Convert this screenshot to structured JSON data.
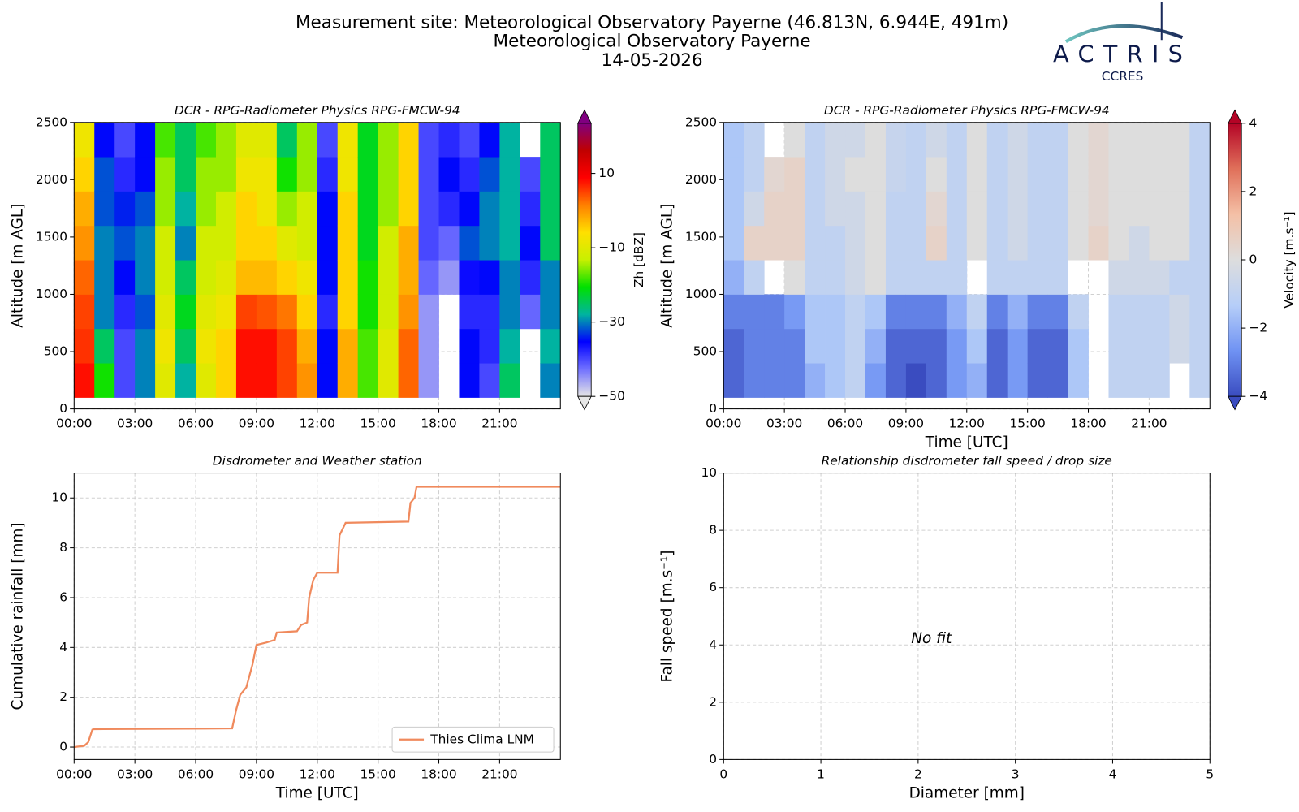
{
  "header": {
    "lines": [
      "Measurement site: Meteorological Observatory Payerne (46.813N, 6.944E, 491m)",
      "Meteorological Observatory Payerne",
      "14-05-2026"
    ],
    "logo": "ACTRIS",
    "logo_sub": "CCRES"
  },
  "chart_data": [
    {
      "type": "heatmap",
      "title": "DCR - RPG-Radiometer Physics RPG-FMCW-94",
      "ylabel": "Altitude [m AGL]",
      "x_edges": [
        0,
        1,
        2,
        3,
        4,
        5,
        6,
        7,
        8,
        9,
        10,
        11,
        12,
        13,
        14,
        15,
        16,
        17,
        18,
        19,
        20,
        21,
        22,
        23,
        24
      ],
      "y_edges": [
        100,
        400,
        700,
        1000,
        1300,
        1600,
        1900,
        2200,
        2500
      ],
      "values": [
        [
          8,
          6,
          5,
          3,
          0,
          -2,
          -5,
          -8
        ],
        [
          -20,
          -25,
          -30,
          -30,
          -30,
          -32,
          -32,
          -35
        ],
        [
          -40,
          -40,
          -38,
          -35,
          -32,
          -34,
          -38,
          -40
        ],
        [
          -30,
          -30,
          -32,
          -30,
          -30,
          -32,
          -35,
          -35
        ],
        [
          -10,
          -8,
          -10,
          -12,
          -12,
          -15,
          -15,
          -18
        ],
        [
          -28,
          -25,
          -22,
          -25,
          -30,
          -28,
          -25,
          -25
        ],
        [
          -10,
          -8,
          -10,
          -12,
          -12,
          -15,
          -15,
          -18
        ],
        [
          -5,
          -5,
          -8,
          -10,
          -12,
          -12,
          -15,
          -15
        ],
        [
          8,
          8,
          5,
          -3,
          -5,
          -5,
          -8,
          -10
        ],
        [
          8,
          8,
          4,
          -3,
          -5,
          -8,
          -8,
          -10
        ],
        [
          5,
          5,
          2,
          -5,
          -10,
          -15,
          -20,
          -25
        ],
        [
          0,
          -2,
          -5,
          -8,
          -12,
          -12,
          -15,
          -15
        ],
        [
          -35,
          -35,
          -38,
          -35,
          -35,
          -35,
          -38,
          -40
        ],
        [
          -2,
          -2,
          -5,
          -5,
          -5,
          -5,
          -8,
          -8
        ],
        [
          -18,
          -18,
          -20,
          -20,
          -22,
          -22,
          -22,
          -22
        ],
        [
          -10,
          -10,
          -12,
          -12,
          -12,
          -15,
          -15,
          -15
        ],
        [
          3,
          3,
          0,
          -2,
          -2,
          -5,
          -5,
          -5
        ],
        [
          -45,
          -45,
          -45,
          -42,
          -40,
          -40,
          -40,
          -40
        ],
        [
          null,
          null,
          null,
          -45,
          -42,
          -38,
          -35,
          -38
        ],
        [
          -35,
          -35,
          -38,
          -36,
          -32,
          -35,
          -38,
          -40
        ],
        [
          -40,
          -38,
          -38,
          -35,
          -30,
          -30,
          -32,
          -35
        ],
        [
          -25,
          -28,
          -30,
          -30,
          -28,
          -28,
          -28,
          -28
        ],
        [
          null,
          null,
          -42,
          -38,
          -35,
          -38,
          -40,
          null
        ],
        [
          -30,
          -28,
          -30,
          -30,
          -25,
          -25,
          -25,
          -25
        ]
      ],
      "xlim": [
        0,
        24
      ],
      "xticks": [
        {
          "value": 0,
          "label": "00:00"
        },
        {
          "value": 3,
          "label": "03:00"
        },
        {
          "value": 6,
          "label": "06:00"
        },
        {
          "value": 9,
          "label": "09:00"
        },
        {
          "value": 12,
          "label": "12:00"
        },
        {
          "value": 15,
          "label": "15:00"
        },
        {
          "value": 18,
          "label": "18:00"
        },
        {
          "value": 21,
          "label": "21:00"
        }
      ],
      "ylim": [
        0,
        2500
      ],
      "yticks": [
        0,
        500,
        1000,
        1500,
        2000,
        2500
      ],
      "grid": true,
      "zlim": [
        -50,
        23.5
      ],
      "zticks": [
        {
          "value": -50,
          "label": "−50"
        },
        {
          "value": -30,
          "label": "−30"
        },
        {
          "value": -10,
          "label": "−10"
        },
        10
      ],
      "colorbar_label": "Zh [dBZ]",
      "colormap": [
        "#e6e6e6",
        "#7070ff",
        "#0000ff",
        "#00b4a0",
        "#00e000",
        "#c8f000",
        "#ffe000",
        "#ff8000",
        "#ff0000",
        "#c00000",
        "#800080"
      ]
    },
    {
      "type": "heatmap",
      "title": "DCR - RPG-Radiometer Physics RPG-FMCW-94",
      "xlabel": "Time [UTC]",
      "ylabel": "Altitude [m AGL]",
      "x_edges": [
        0,
        1,
        2,
        3,
        4,
        5,
        6,
        7,
        8,
        9,
        10,
        11,
        12,
        13,
        14,
        15,
        16,
        17,
        18,
        19,
        20,
        21,
        22,
        23,
        24
      ],
      "y_edges": [
        100,
        400,
        700,
        1000,
        1300,
        1600,
        1900,
        2200,
        2500
      ],
      "values": [
        [
          -3.5,
          -3.5,
          -3,
          -2,
          -1.5,
          -1.5,
          -1.5,
          -1.5
        ],
        [
          -3,
          -3,
          -3,
          -1,
          0.5,
          -0.5,
          -1,
          -1
        ],
        [
          -3,
          -3,
          -3,
          null,
          0.5,
          0.5,
          0.3,
          null
        ],
        [
          -3,
          -3,
          -2.5,
          0,
          0.5,
          0.5,
          0.5,
          0
        ],
        [
          -2,
          -1.5,
          -1.5,
          -1,
          -1,
          -1,
          -1,
          -1
        ],
        [
          -1.5,
          -1.5,
          -1.5,
          -1,
          -1,
          -0.5,
          -0.5,
          -0.5
        ],
        [
          -1,
          -1,
          -1,
          -0.5,
          -0.5,
          -0.5,
          0,
          -0.5
        ],
        [
          -2.5,
          -2,
          -1.5,
          0,
          0,
          0,
          0,
          0
        ],
        [
          -3.5,
          -3.5,
          -3,
          -1,
          -1,
          -1,
          -0.8,
          -0.8
        ],
        [
          -4,
          -3.5,
          -3,
          -1,
          -1,
          -1,
          -1,
          -1
        ],
        [
          -3.5,
          -3.5,
          -3,
          -1,
          0.5,
          0.3,
          0,
          -0.5
        ],
        [
          -2.5,
          -2.5,
          -2,
          -1,
          -1,
          -1,
          -1,
          -1
        ],
        [
          -2,
          -1.5,
          -1,
          null,
          0,
          0,
          0,
          0
        ],
        [
          -3.5,
          -3.5,
          -3,
          -1,
          -1,
          -1,
          -1,
          -1
        ],
        [
          -2.5,
          -2.5,
          -2,
          -1,
          -0.5,
          -0.5,
          -0.5,
          -0.5
        ],
        [
          -3.5,
          -3.5,
          -3,
          -1,
          -1,
          -1,
          -1,
          -1
        ],
        [
          -3.5,
          -3.5,
          -3,
          -1,
          -1,
          -1,
          -1,
          -1
        ],
        [
          -1.5,
          -1.5,
          -1,
          null,
          0,
          0,
          0,
          0
        ],
        [
          null,
          null,
          null,
          null,
          0.5,
          0.3,
          0.3,
          0.3
        ],
        [
          -1,
          -1,
          -1,
          -0.5,
          0,
          0,
          0,
          0
        ],
        [
          -1,
          -1,
          -1,
          -0.5,
          -0.5,
          0,
          0,
          0
        ],
        [
          -1,
          -1,
          -1,
          -0.5,
          0,
          0,
          0,
          0
        ],
        [
          null,
          -0.5,
          -0.5,
          -1,
          0,
          0,
          0,
          0
        ],
        [
          -1,
          -1,
          -1,
          -1,
          -1,
          -1,
          -1,
          -1
        ]
      ],
      "xlim": [
        0,
        24
      ],
      "xticks": [
        {
          "value": 0,
          "label": "00:00"
        },
        {
          "value": 3,
          "label": "03:00"
        },
        {
          "value": 6,
          "label": "06:00"
        },
        {
          "value": 9,
          "label": "09:00"
        },
        {
          "value": 12,
          "label": "12:00"
        },
        {
          "value": 15,
          "label": "15:00"
        },
        {
          "value": 18,
          "label": "18:00"
        },
        {
          "value": 21,
          "label": "21:00"
        }
      ],
      "ylim": [
        0,
        2500
      ],
      "yticks": [
        0,
        500,
        1000,
        1500,
        2000,
        2500
      ],
      "grid": true,
      "zlim": [
        -4,
        4
      ],
      "zticks": [
        {
          "value": -4,
          "label": "−4"
        },
        {
          "value": -2,
          "label": "−2"
        },
        0,
        2,
        4
      ],
      "colorbar_label": "Velocity [m.s⁻¹]",
      "colormap": [
        "#3a4cc0",
        "#6f92f3",
        "#b6cef8",
        "#dddddd",
        "#f4c0a6",
        "#e0705a",
        "#b40426"
      ]
    },
    {
      "type": "line",
      "title": "Disdrometer and Weather station",
      "xlabel": "Time [UTC]",
      "ylabel": "Cumulative rainfall [mm]",
      "x": [
        0,
        0.5,
        0.7,
        0.9,
        1,
        7.8,
        8,
        8.2,
        8.5,
        8.8,
        9,
        9.5,
        9.9,
        10,
        11,
        11.2,
        11.5,
        11.6,
        11.8,
        12,
        13,
        13.1,
        13.4,
        16.5,
        16.6,
        16.8,
        16.9,
        24
      ],
      "series": [
        {
          "name": "Thies Clima LNM",
          "color": "#f08a5d",
          "values": [
            0,
            0.05,
            0.2,
            0.7,
            0.72,
            0.75,
            1.5,
            2.1,
            2.4,
            3.3,
            4.1,
            4.2,
            4.3,
            4.6,
            4.65,
            4.9,
            5.0,
            6.0,
            6.7,
            7.0,
            7.0,
            8.5,
            9.0,
            9.05,
            9.8,
            10.0,
            10.45,
            10.45
          ]
        }
      ],
      "xlim": [
        0,
        24
      ],
      "xticks": [
        {
          "value": 0,
          "label": "00:00"
        },
        {
          "value": 3,
          "label": "03:00"
        },
        {
          "value": 6,
          "label": "06:00"
        },
        {
          "value": 9,
          "label": "09:00"
        },
        {
          "value": 12,
          "label": "12:00"
        },
        {
          "value": 15,
          "label": "15:00"
        },
        {
          "value": 18,
          "label": "18:00"
        },
        {
          "value": 21,
          "label": "21:00"
        }
      ],
      "ylim": [
        -0.5,
        11
      ],
      "yticks": [
        0,
        2,
        4,
        6,
        8,
        10
      ],
      "grid": true,
      "legend": "lower right"
    },
    {
      "type": "scatter",
      "title": "Relationship disdrometer fall speed / drop size",
      "xlabel": "Diameter [mm]",
      "ylabel": "Fall speed [m.s⁻¹]",
      "xlim": [
        0,
        5
      ],
      "xticks": [
        0,
        1,
        2,
        3,
        4,
        5
      ],
      "ylim": [
        0,
        10
      ],
      "yticks": [
        0,
        2,
        4,
        6,
        8,
        10
      ],
      "grid": true,
      "annotation": "No fit"
    }
  ]
}
